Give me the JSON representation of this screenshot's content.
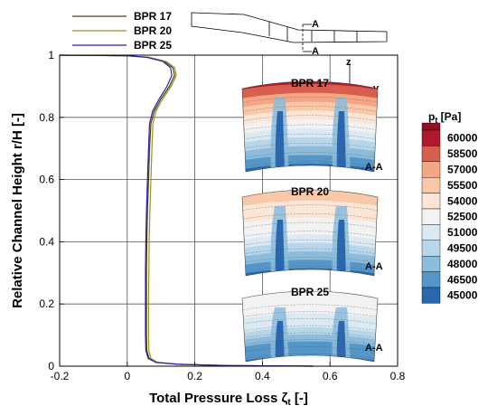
{
  "chart_data": {
    "type": "line",
    "xlabel": "Total Pressure Loss ζ",
    "xlabel_sub": "t",
    "xlabel_unit": " [-]",
    "ylabel": "Relative Channel Height r/H [-]",
    "xlim": [
      -0.2,
      0.8
    ],
    "ylim": [
      0,
      1
    ],
    "xticks": [
      "-0.2",
      "0",
      "0.2",
      "0.4",
      "0.6",
      "0.8"
    ],
    "yticks": [
      "0",
      "0.2",
      "0.4",
      "0.6",
      "0.8",
      "1"
    ],
    "xtick_values": [
      -0.2,
      0,
      0.2,
      0.4,
      0.6,
      0.8
    ],
    "ytick_values": [
      0,
      0.2,
      0.4,
      0.6,
      0.8,
      1
    ],
    "grid": true,
    "legend_position": "top-left",
    "series": [
      {
        "name": "BPR 17",
        "color": "#5a3a12",
        "points": [
          [
            0.55,
            0.0
          ],
          [
            0.3,
            0.002
          ],
          [
            0.15,
            0.006
          ],
          [
            0.09,
            0.012
          ],
          [
            0.065,
            0.025
          ],
          [
            0.058,
            0.05
          ],
          [
            0.057,
            0.1
          ],
          [
            0.057,
            0.2
          ],
          [
            0.057,
            0.3
          ],
          [
            0.058,
            0.4
          ],
          [
            0.06,
            0.5
          ],
          [
            0.063,
            0.6
          ],
          [
            0.066,
            0.7
          ],
          [
            0.07,
            0.78
          ],
          [
            0.08,
            0.82
          ],
          [
            0.1,
            0.86
          ],
          [
            0.125,
            0.9
          ],
          [
            0.14,
            0.935
          ],
          [
            0.135,
            0.96
          ],
          [
            0.11,
            0.98
          ],
          [
            0.06,
            0.993
          ],
          [
            0.0,
            0.998
          ],
          [
            -0.2,
            1.0
          ]
        ]
      },
      {
        "name": "BPR 20",
        "color": "#8c9a1e",
        "points": [
          [
            0.55,
            0.0
          ],
          [
            0.3,
            0.002
          ],
          [
            0.15,
            0.006
          ],
          [
            0.09,
            0.012
          ],
          [
            0.07,
            0.025
          ],
          [
            0.064,
            0.05
          ],
          [
            0.063,
            0.1
          ],
          [
            0.063,
            0.2
          ],
          [
            0.064,
            0.3
          ],
          [
            0.065,
            0.4
          ],
          [
            0.067,
            0.5
          ],
          [
            0.07,
            0.6
          ],
          [
            0.073,
            0.7
          ],
          [
            0.076,
            0.78
          ],
          [
            0.085,
            0.82
          ],
          [
            0.105,
            0.86
          ],
          [
            0.13,
            0.9
          ],
          [
            0.145,
            0.935
          ],
          [
            0.14,
            0.96
          ],
          [
            0.115,
            0.98
          ],
          [
            0.065,
            0.993
          ],
          [
            0.0,
            0.998
          ],
          [
            -0.2,
            1.0
          ]
        ]
      },
      {
        "name": "BPR 25",
        "color": "#2323b0",
        "points": [
          [
            0.55,
            0.0
          ],
          [
            0.3,
            0.002
          ],
          [
            0.15,
            0.006
          ],
          [
            0.085,
            0.012
          ],
          [
            0.062,
            0.025
          ],
          [
            0.055,
            0.05
          ],
          [
            0.054,
            0.1
          ],
          [
            0.054,
            0.2
          ],
          [
            0.054,
            0.3
          ],
          [
            0.055,
            0.4
          ],
          [
            0.057,
            0.5
          ],
          [
            0.06,
            0.6
          ],
          [
            0.063,
            0.7
          ],
          [
            0.066,
            0.78
          ],
          [
            0.075,
            0.82
          ],
          [
            0.095,
            0.86
          ],
          [
            0.118,
            0.9
          ],
          [
            0.132,
            0.935
          ],
          [
            0.128,
            0.96
          ],
          [
            0.105,
            0.98
          ],
          [
            0.058,
            0.993
          ],
          [
            0.0,
            0.998
          ],
          [
            -0.2,
            1.0
          ]
        ]
      }
    ],
    "insets": [
      {
        "title": "BPR 17",
        "section": "A-A",
        "level": "high"
      },
      {
        "title": "BPR 20",
        "section": "A-A",
        "level": "mid"
      },
      {
        "title": "BPR 25",
        "section": "A-A",
        "level": "low"
      }
    ],
    "schematic_label": "A",
    "axis_glyphs": {
      "z": "z",
      "y": "y"
    },
    "colorbar": {
      "title": "p",
      "title_sub": "t",
      "title_unit": " [Pa]",
      "levels": [
        "60000",
        "58500",
        "57000",
        "55500",
        "54000",
        "52500",
        "51000",
        "49500",
        "48000",
        "46500",
        "45000"
      ],
      "colors": [
        "#b2182b",
        "#d6604d",
        "#f4a582",
        "#f9c8a8",
        "#fbe5d6",
        "#f2f2f2",
        "#dbe9f3",
        "#b8d6ea",
        "#8bbcdc",
        "#5596c8",
        "#2a67ae"
      ],
      "top_color": "#8f1024"
    }
  }
}
